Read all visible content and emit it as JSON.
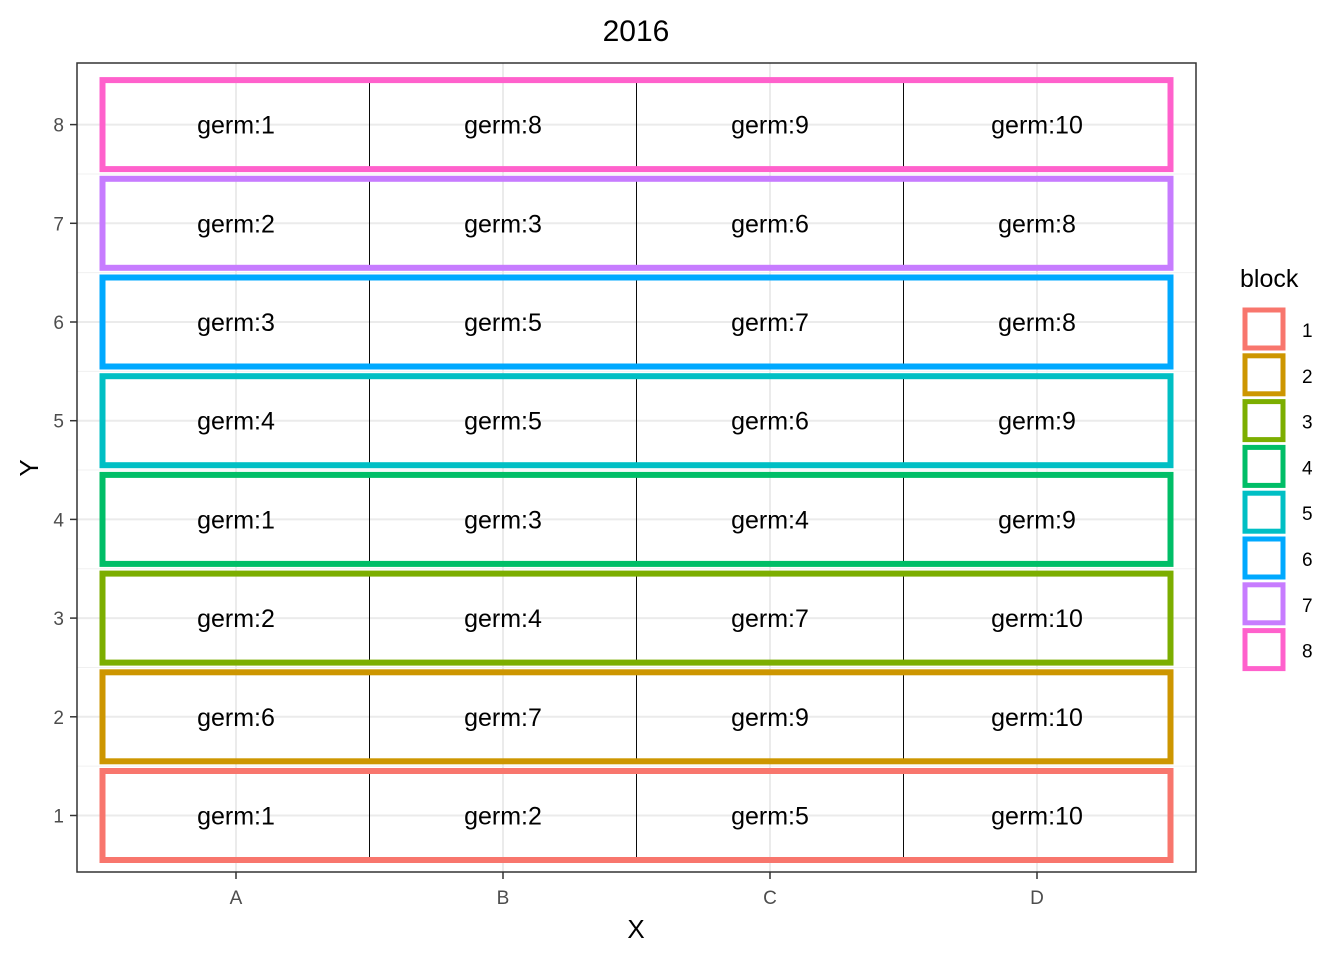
{
  "chart_data": {
    "type": "heatmap",
    "title": "2016",
    "xlabel": "X",
    "ylabel": "Y",
    "x_categories": [
      "A",
      "B",
      "C",
      "D"
    ],
    "y_ticks": [
      "1",
      "2",
      "3",
      "4",
      "5",
      "6",
      "7",
      "8"
    ],
    "grid": true,
    "legend": {
      "title": "block",
      "position": "right",
      "entries": [
        {
          "label": "1",
          "color": "#F8766D"
        },
        {
          "label": "2",
          "color": "#CD9600"
        },
        {
          "label": "3",
          "color": "#7CAE00"
        },
        {
          "label": "4",
          "color": "#00BE67"
        },
        {
          "label": "5",
          "color": "#00BFC4"
        },
        {
          "label": "6",
          "color": "#00A9FF"
        },
        {
          "label": "7",
          "color": "#C77CFF"
        },
        {
          "label": "8",
          "color": "#FF61CC"
        }
      ]
    },
    "blocks": [
      {
        "block": "1",
        "y": 1,
        "cells": [
          "germ:1",
          "germ:2",
          "germ:5",
          "germ:10"
        ]
      },
      {
        "block": "2",
        "y": 2,
        "cells": [
          "germ:6",
          "germ:7",
          "germ:9",
          "germ:10"
        ]
      },
      {
        "block": "3",
        "y": 3,
        "cells": [
          "germ:2",
          "germ:4",
          "germ:7",
          "germ:10"
        ]
      },
      {
        "block": "4",
        "y": 4,
        "cells": [
          "germ:1",
          "germ:3",
          "germ:4",
          "germ:9"
        ]
      },
      {
        "block": "5",
        "y": 5,
        "cells": [
          "germ:4",
          "germ:5",
          "germ:6",
          "germ:9"
        ]
      },
      {
        "block": "6",
        "y": 6,
        "cells": [
          "germ:3",
          "germ:5",
          "germ:7",
          "germ:8"
        ]
      },
      {
        "block": "7",
        "y": 7,
        "cells": [
          "germ:2",
          "germ:3",
          "germ:6",
          "germ:8"
        ]
      },
      {
        "block": "8",
        "y": 8,
        "cells": [
          "germ:1",
          "germ:8",
          "germ:9",
          "germ:10"
        ]
      }
    ]
  }
}
